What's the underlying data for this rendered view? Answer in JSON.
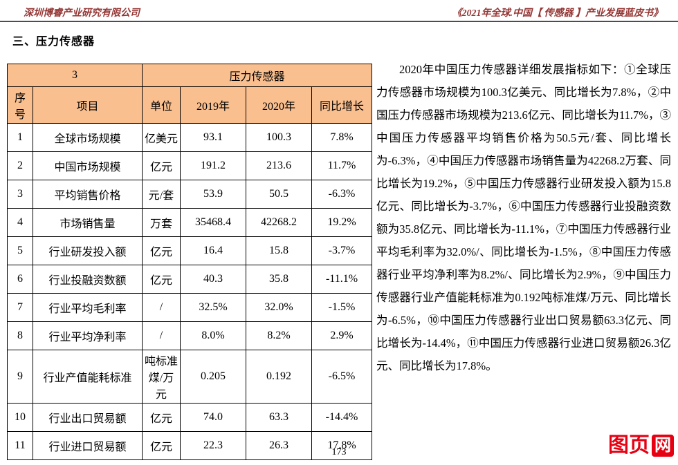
{
  "header": {
    "company": "深圳博睿产业研究有限公司",
    "book_title": "《2021年全球.中国【 传感器 】产业发展蓝皮书》"
  },
  "section_title": "三、压力传感器",
  "table": {
    "group_label": "3",
    "group_title": "压力传感器",
    "columns": [
      "序号",
      "项目",
      "单位",
      "2019年",
      "2020年",
      "同比增长"
    ],
    "rows": [
      [
        "1",
        "全球市场规模",
        "亿美元",
        "93.1",
        "100.3",
        "7.8%"
      ],
      [
        "2",
        "中国市场规模",
        "亿元",
        "191.2",
        "213.6",
        "11.7%"
      ],
      [
        "3",
        "平均销售价格",
        "元/套",
        "53.9",
        "50.5",
        "-6.3%"
      ],
      [
        "4",
        "市场销售量",
        "万套",
        "35468.4",
        "42268.2",
        "19.2%"
      ],
      [
        "5",
        "行业研发投入额",
        "亿元",
        "16.4",
        "15.8",
        "-3.7%"
      ],
      [
        "6",
        "行业投融资数额",
        "亿元",
        "40.3",
        "35.8",
        "-11.1%"
      ],
      [
        "7",
        "行业平均毛利率",
        "/",
        "32.5%",
        "32.0%",
        "-1.5%"
      ],
      [
        "8",
        "行业平均净利率",
        "/",
        "8.0%",
        "8.2%",
        "2.9%"
      ],
      [
        "9",
        "行业产值能耗标准",
        "吨标准煤/万元",
        "0.205",
        "0.192",
        "-6.5%"
      ],
      [
        "10",
        "行业出口贸易额",
        "亿元",
        "74.0",
        "63.3",
        "-14.4%"
      ],
      [
        "11",
        "行业进口贸易额",
        "亿元",
        "22.3",
        "26.3",
        "17.8%"
      ]
    ]
  },
  "body_text": "2020年中国压力传感器详细发展指标如下：①全球压力传感器市场规模为100.3亿美元、同比增长为7.8%，②中国压力传感器市场规模为213.6亿元、同比增长为11.7%，③中国压力传感器平均销售价格为50.5元/套、同比增长为-6.3%，④中国压力传感器市场销售量为42268.2万套、同比增长为19.2%，⑤中国压力传感器行业研发投入额为15.8亿元、同比增长为-3.7%，⑥中国压力传感器行业投融资数额为35.8亿元、同比增长为-11.1%，⑦中国压力传感器行业平均毛利率为32.0%/、同比增长为-1.5%，⑧中国压力传感器行业平均净利率为8.2%/、同比增长为2.9%，⑨中国压力传感器行业产值能耗标准为0.192吨标准煤/万元、同比增长为-6.5%，⑩中国压力传感器行业出口贸易额63.3亿元、同比增长为-14.4%，⑪中国压力传感器行业进口贸易额26.3亿元、同比增长为17.8%。",
  "page_number": "173",
  "watermark": {
    "part1": "图页",
    "part2": "网"
  },
  "colors": {
    "header_text": "#943634",
    "table_header_bg": "#FABF8F",
    "watermark_red": "#E60012",
    "rule": "#4d4d4d"
  }
}
